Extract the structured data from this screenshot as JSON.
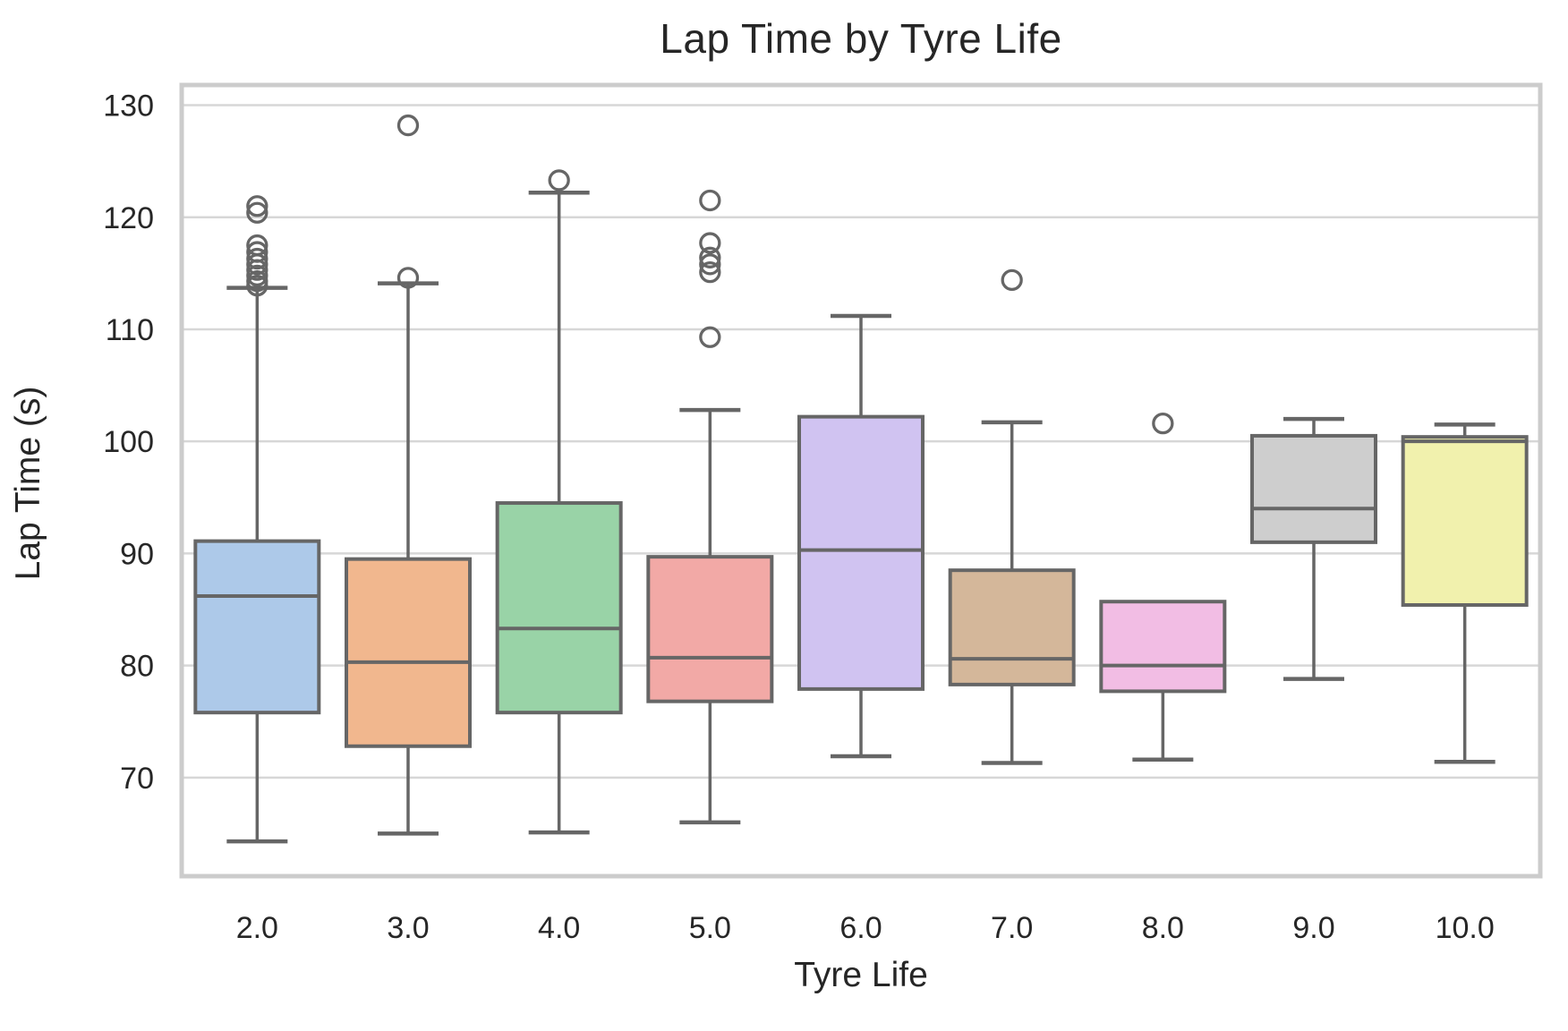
{
  "title": "Lap Time by Tyre Life",
  "axes": {
    "x_label": "Tyre Life",
    "y_label": "Lap Time (s)",
    "y_ticks": [
      130,
      120,
      110,
      100,
      90,
      80,
      70
    ],
    "x_tick_labels": [
      "2.0",
      "3.0",
      "4.0",
      "5.0",
      "6.0",
      "7.0",
      "8.0",
      "9.0",
      "10.0"
    ],
    "grid": true,
    "legend": "none"
  },
  "style": {
    "background": "#ffffff",
    "grid_color": "#d7d7d7",
    "spine_color": "#cccccc",
    "line_color": "#666666",
    "text_color": "#262626"
  },
  "chart_data": {
    "type": "box",
    "title": "Lap Time by Tyre Life",
    "xlabel": "Tyre Life",
    "ylabel": "Lap Time (s)",
    "ylim": [
      61.2,
      131.8
    ],
    "categories": [
      "2.0",
      "3.0",
      "4.0",
      "5.0",
      "6.0",
      "7.0",
      "8.0",
      "9.0",
      "10.0"
    ],
    "boxes": [
      {
        "category": "2.0",
        "color": "#adc9e9",
        "whisker_low": 64.3,
        "q1": 75.8,
        "median": 86.2,
        "q3": 91.1,
        "whisker_high": 113.7,
        "outliers": [
          113.9,
          114.3,
          114.8,
          115.3,
          115.8,
          116.3,
          116.9,
          117.5,
          120.4,
          121.0
        ]
      },
      {
        "category": "3.0",
        "color": "#f1b78e",
        "whisker_low": 65.0,
        "q1": 72.8,
        "median": 80.3,
        "q3": 89.5,
        "whisker_high": 114.1,
        "outliers": [
          114.6,
          128.2
        ]
      },
      {
        "category": "4.0",
        "color": "#99d3a7",
        "whisker_low": 65.1,
        "q1": 75.8,
        "median": 83.3,
        "q3": 94.5,
        "whisker_high": 122.2,
        "outliers": [
          123.3
        ]
      },
      {
        "category": "5.0",
        "color": "#f2a9a6",
        "whisker_low": 66.0,
        "q1": 76.8,
        "median": 80.7,
        "q3": 89.7,
        "whisker_high": 102.8,
        "outliers": [
          109.3,
          115.1,
          115.8,
          116.4,
          117.7,
          121.5
        ]
      },
      {
        "category": "6.0",
        "color": "#d0c3f1",
        "whisker_low": 71.9,
        "q1": 77.9,
        "median": 90.3,
        "q3": 102.2,
        "whisker_high": 111.2,
        "outliers": []
      },
      {
        "category": "7.0",
        "color": "#d4b79a",
        "whisker_low": 71.3,
        "q1": 78.3,
        "median": 80.6,
        "q3": 88.5,
        "whisker_high": 101.7,
        "outliers": [
          114.4
        ]
      },
      {
        "category": "8.0",
        "color": "#f2bde4",
        "whisker_low": 71.6,
        "q1": 77.7,
        "median": 80.0,
        "q3": 85.7,
        "whisker_high": null,
        "outliers": [
          101.6
        ]
      },
      {
        "category": "9.0",
        "color": "#cecece",
        "whisker_low": 78.8,
        "q1": 91.0,
        "median": 94.0,
        "q3": 100.5,
        "whisker_high": 102.0,
        "outliers": []
      },
      {
        "category": "10.0",
        "color": "#f1f1ad",
        "whisker_low": 71.4,
        "q1": 85.4,
        "median": 100.0,
        "q3": 100.4,
        "whisker_high": 101.5,
        "outliers": []
      }
    ]
  }
}
